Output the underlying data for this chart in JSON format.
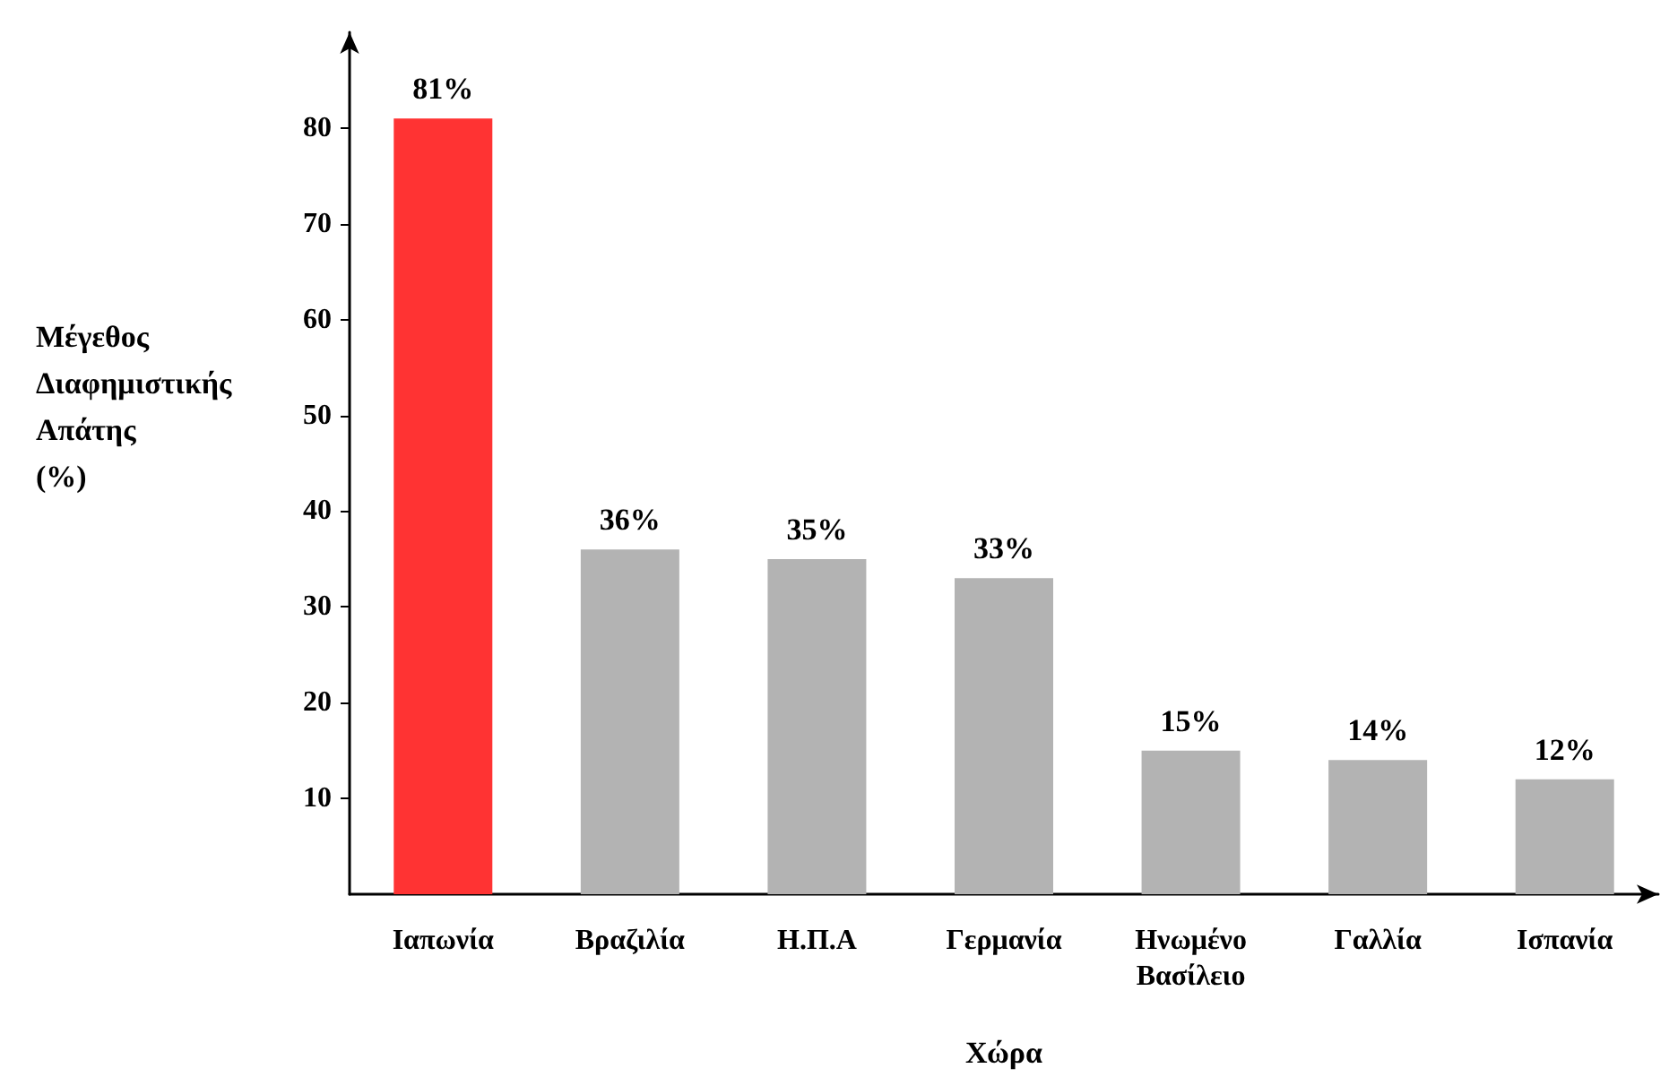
{
  "chart_data": {
    "type": "bar",
    "xlabel": "Χώρα",
    "ylabel": "Μέγεθος Διαφημιστικής Απάτης (%)",
    "categories": [
      "Ιαπωνία",
      "Βραζιλία",
      "Η.Π.Α",
      "Γερμανία",
      "Ηνωμένο Βασίλειο",
      "Γαλλία",
      "Ισπανία"
    ],
    "values": [
      81,
      36,
      35,
      33,
      15,
      14,
      12
    ],
    "value_labels": [
      "81%",
      "36%",
      "35%",
      "33%",
      "15%",
      "14%",
      "12%"
    ],
    "colors": [
      "#ff3333",
      "#b3b3b3",
      "#b3b3b3",
      "#b3b3b3",
      "#b3b3b3",
      "#b3b3b3",
      "#b3b3b3"
    ],
    "ylim": [
      0,
      90
    ],
    "yticks": [
      10,
      20,
      30,
      40,
      50,
      60,
      70,
      80
    ],
    "grid": false
  }
}
